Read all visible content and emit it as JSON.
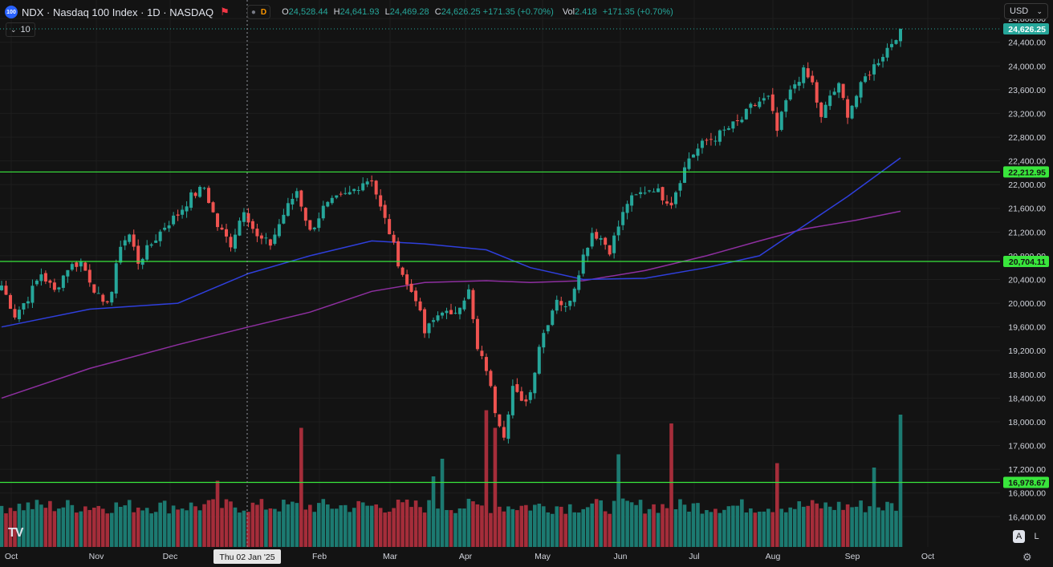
{
  "header": {
    "logo_text": "100",
    "symbol_title": "NDX · Nasdaq 100 Index · 1D · NASDAQ",
    "flag_icon": "flag-icon",
    "pill_label": "D",
    "ohlc": {
      "o_label": "O",
      "o_value": "24,528.44",
      "h_label": "H",
      "h_value": "24,641.93",
      "l_label": "L",
      "l_value": "24,469.28",
      "c_label": "C",
      "c_value": "24,626.25 +171.35 (+0.70%)",
      "vol_label": "Vol",
      "vol_value": "2.418",
      "vol_change": "+171.35 (+0.70%)"
    },
    "subheader": "10",
    "currency": "USD"
  },
  "chart_data": {
    "type": "candlestick",
    "x_axis": {
      "labels": [
        "Oct",
        "Nov",
        "Dec",
        "Feb",
        "Mar",
        "Apr",
        "May",
        "Jun",
        "Jul",
        "Aug",
        "Sep",
        "Oct"
      ],
      "crosshair_label": "Thu 02 Jan '25"
    },
    "y_axis": {
      "ticks": [
        24800,
        24400,
        24000,
        23600,
        23200,
        22800,
        22400,
        22000,
        21600,
        21200,
        20800,
        20400,
        20000,
        19600,
        19200,
        18800,
        18400,
        18000,
        17600,
        17200,
        16800,
        16400
      ],
      "tick_labels": [
        "24,800.00",
        "24,400.00",
        "24,000.00",
        "23,600.00",
        "23,200.00",
        "22,800.00",
        "22,400.00",
        "22,000.00",
        "21,600.00",
        "21,200.00",
        "20,800.00",
        "20,400.00",
        "20,000.00",
        "19,600.00",
        "19,200.00",
        "18,800.00",
        "18,400.00",
        "18,000.00",
        "17,600.00",
        "17,200.00",
        "16,800.00",
        "16,400.00"
      ],
      "range": [
        16100,
        25100
      ]
    },
    "last_price": 24626.25,
    "last_price_label": "24,626.25",
    "horizontal_lines": [
      {
        "value": 22212.95,
        "label": "22,212.95"
      },
      {
        "value": 20704.11,
        "label": "20,704.11"
      },
      {
        "value": 16978.67,
        "label": "16,978.67"
      }
    ],
    "close_path": [
      [
        0,
        20300
      ],
      [
        3,
        19800
      ],
      [
        6,
        20100
      ],
      [
        9,
        20500
      ],
      [
        12,
        20200
      ],
      [
        15,
        20600
      ],
      [
        18,
        20700
      ],
      [
        20,
        20400
      ],
      [
        23,
        19950
      ],
      [
        25,
        20200
      ],
      [
        27,
        21000
      ],
      [
        29,
        21150
      ],
      [
        31,
        20700
      ],
      [
        34,
        21000
      ],
      [
        37,
        21300
      ],
      [
        40,
        21500
      ],
      [
        43,
        21800
      ],
      [
        46,
        21950
      ],
      [
        49,
        21300
      ],
      [
        52,
        21000
      ],
      [
        55,
        21600
      ],
      [
        58,
        21100
      ],
      [
        61,
        21000
      ],
      [
        64,
        21500
      ],
      [
        67,
        21900
      ],
      [
        70,
        21200
      ],
      [
        73,
        21600
      ],
      [
        76,
        21750
      ],
      [
        79,
        21850
      ],
      [
        82,
        22050
      ],
      [
        84,
        22100
      ],
      [
        86,
        21600
      ],
      [
        88,
        21200
      ],
      [
        90,
        20700
      ],
      [
        92,
        20300
      ],
      [
        94,
        20100
      ],
      [
        96,
        19500
      ],
      [
        98,
        19700
      ],
      [
        100,
        19900
      ],
      [
        102,
        19750
      ],
      [
        104,
        20000
      ],
      [
        106,
        20200
      ],
      [
        108,
        19200
      ],
      [
        110,
        18900
      ],
      [
        112,
        18200
      ],
      [
        114,
        17800
      ],
      [
        116,
        18600
      ],
      [
        118,
        18300
      ],
      [
        120,
        18500
      ],
      [
        122,
        19300
      ],
      [
        124,
        19700
      ],
      [
        126,
        20100
      ],
      [
        128,
        19900
      ],
      [
        130,
        20300
      ],
      [
        132,
        20800
      ],
      [
        134,
        21200
      ],
      [
        136,
        21100
      ],
      [
        138,
        20900
      ],
      [
        140,
        21300
      ],
      [
        142,
        21700
      ],
      [
        144,
        21800
      ],
      [
        146,
        21900
      ],
      [
        148,
        21950
      ],
      [
        150,
        21800
      ],
      [
        152,
        21700
      ],
      [
        154,
        22100
      ],
      [
        156,
        22450
      ],
      [
        158,
        22600
      ],
      [
        160,
        22750
      ],
      [
        162,
        22800
      ],
      [
        164,
        22900
      ],
      [
        166,
        23000
      ],
      [
        168,
        23100
      ],
      [
        170,
        23300
      ],
      [
        172,
        23400
      ],
      [
        174,
        23450
      ],
      [
        176,
        22900
      ],
      [
        178,
        23400
      ],
      [
        180,
        23700
      ],
      [
        182,
        23900
      ],
      [
        184,
        23700
      ],
      [
        186,
        23100
      ],
      [
        188,
        23500
      ],
      [
        190,
        23650
      ],
      [
        192,
        23200
      ],
      [
        194,
        23500
      ],
      [
        196,
        23800
      ],
      [
        198,
        24000
      ],
      [
        200,
        24200
      ],
      [
        202,
        24400
      ],
      [
        204,
        24626
      ]
    ],
    "ma_blue": [
      [
        0,
        19600
      ],
      [
        20,
        19900
      ],
      [
        40,
        20000
      ],
      [
        56,
        20500
      ],
      [
        70,
        20800
      ],
      [
        84,
        21050
      ],
      [
        96,
        21000
      ],
      [
        110,
        20900
      ],
      [
        120,
        20600
      ],
      [
        132,
        20400
      ],
      [
        146,
        20420
      ],
      [
        160,
        20600
      ],
      [
        172,
        20800
      ],
      [
        180,
        21200
      ],
      [
        192,
        21800
      ],
      [
        204,
        22450
      ]
    ],
    "ma_purple": [
      [
        0,
        18400
      ],
      [
        20,
        18900
      ],
      [
        40,
        19300
      ],
      [
        56,
        19600
      ],
      [
        70,
        19850
      ],
      [
        84,
        20200
      ],
      [
        96,
        20350
      ],
      [
        110,
        20380
      ],
      [
        120,
        20350
      ],
      [
        132,
        20380
      ],
      [
        146,
        20550
      ],
      [
        160,
        20800
      ],
      [
        172,
        21050
      ],
      [
        182,
        21250
      ],
      [
        194,
        21400
      ],
      [
        204,
        21550
      ]
    ],
    "volume": {
      "color_up": "#1c7a71",
      "color_down": "#a52d3a",
      "spikes": [
        [
          49,
          1.5
        ],
        [
          68,
          2.7
        ],
        [
          98,
          1.6
        ],
        [
          100,
          2.0
        ],
        [
          110,
          3.1
        ],
        [
          112,
          2.7
        ],
        [
          140,
          2.1
        ],
        [
          152,
          2.8
        ],
        [
          176,
          1.9
        ],
        [
          198,
          1.8
        ],
        [
          204,
          3.0
        ]
      ],
      "base_level": 1.0
    },
    "colors": {
      "up": "#26a69a",
      "down": "#ef5350",
      "ma_blue": "#2f3fdc",
      "ma_purple": "#8e2fa0",
      "hline": "#39e63c",
      "grid": "#1e1e1e",
      "background": "#131313"
    },
    "grid": true
  },
  "footer": {
    "logo": "TV",
    "btn_auto": "A",
    "btn_log": "L",
    "settings_icon": "gear-icon"
  }
}
